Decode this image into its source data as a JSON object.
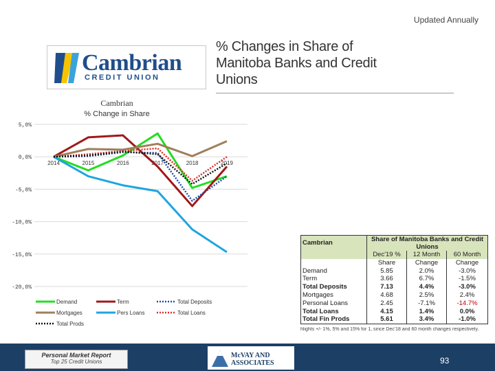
{
  "header": {
    "updated": "Updated Annually",
    "title": "% Changes in Share of Manitoba Banks and Credit Unions"
  },
  "logo": {
    "name": "Cambrian",
    "sub": "CREDIT UNION"
  },
  "chart_data": {
    "type": "line",
    "title": "Cambrian",
    "subtitle": "% Change in Share",
    "x": [
      "2014",
      "2015",
      "2016",
      "2017",
      "2018",
      "2019"
    ],
    "ylim": [
      -20,
      5
    ],
    "yticks": [
      5,
      0,
      -5,
      -10,
      -15,
      -20
    ],
    "ytick_labels": [
      "5,0%",
      "0,0%",
      "-5,0%",
      "-10,0%",
      "-15,0%",
      "-20,0%"
    ],
    "grid": true,
    "legend_position": "bottom",
    "series": [
      {
        "name": "Demand",
        "values": [
          0.0,
          -2.1,
          0.2,
          3.6,
          -4.8,
          -3.0
        ],
        "color": "#22dd22",
        "dash": "solid"
      },
      {
        "name": "Term",
        "values": [
          0.0,
          3.0,
          3.3,
          -1.5,
          -7.6,
          -1.5
        ],
        "color": "#a01818",
        "dash": "solid"
      },
      {
        "name": "Total Deposits",
        "values": [
          0.0,
          0.1,
          0.7,
          0.6,
          -6.8,
          -3.0
        ],
        "color": "#1f4ea0",
        "dash": "dotted"
      },
      {
        "name": "Mortgages",
        "values": [
          0.0,
          1.2,
          1.1,
          2.0,
          0.1,
          2.4
        ],
        "color": "#9e7f5a",
        "dash": "solid"
      },
      {
        "name": "Pers Loans",
        "values": [
          0.0,
          -3.0,
          -4.4,
          -5.3,
          -11.2,
          -14.7
        ],
        "color": "#1ea5e0",
        "dash": "solid"
      },
      {
        "name": "Total Loans",
        "values": [
          0.0,
          0.4,
          0.9,
          1.3,
          -3.7,
          0.0
        ],
        "color": "#dd2a2a",
        "dash": "dotted"
      },
      {
        "name": "Total Prods",
        "values": [
          0.0,
          0.2,
          0.8,
          0.4,
          -4.2,
          -1.0
        ],
        "color": "#111111",
        "dash": "dotted"
      }
    ]
  },
  "table": {
    "title": "Share of Manitoba Banks and Credit Unions",
    "institution": "Cambrian",
    "col_headers": [
      [
        "Dec'19 %",
        "Share"
      ],
      [
        "12 Month",
        "Change"
      ],
      [
        "60 Month",
        "Change"
      ]
    ],
    "rows": [
      {
        "label": "Demand",
        "share": "5.85",
        "m12": "2.0%",
        "m60": "-3.0%",
        "bold": false
      },
      {
        "label": "Term",
        "share": "3.66",
        "m12": "6.7%",
        "m60": "-1.5%",
        "bold": false
      },
      {
        "label": "Total Deposits",
        "share": "7.13",
        "m12": "4.4%",
        "m60": "-3.0%",
        "bold": true
      },
      {
        "label": "Mortgages",
        "share": "4.68",
        "m12": "2.5%",
        "m60": "2.4%",
        "bold": false
      },
      {
        "label": "Personal Loans",
        "share": "2.45",
        "m12": "-7.1%",
        "m60": "-14.7%",
        "bold": false
      },
      {
        "label": "Total Loans",
        "share": "4.15",
        "m12": "1.4%",
        "m60": "0.0%",
        "bold": true
      },
      {
        "label": "Total Fin Prods",
        "share": "5.61",
        "m12": "3.4%",
        "m60": "-1.0%",
        "bold": true
      }
    ],
    "footnote": "hlights +/- 1%, 5% and 15% for 1, since Dec'18 and 60 month changes respectively."
  },
  "footer": {
    "report_title": "Personal Market Report",
    "report_sub": "Top 25 Credit Unions",
    "mcvay": "McVAY AND ASSOCIATES",
    "page": "93"
  },
  "colors": {
    "brand": "#1f4e8a",
    "footer": "#1c3f66",
    "table_header": "#d8e4bc"
  }
}
